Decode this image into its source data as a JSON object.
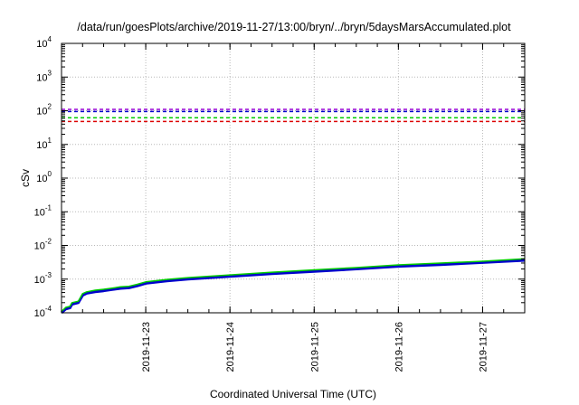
{
  "chart_data": {
    "type": "line",
    "title": "/data/run/goesPlots/archive/2019-11-27/13:00/bryn/../bryn/5daysMarsAccumulated.plot",
    "xlabel": "Coordinated Universal Time (UTC)",
    "ylabel": "cSv",
    "yscale": "log",
    "ylim": [
      0.0001,
      10000
    ],
    "xlim": [
      "2019-11-22 00:00",
      "2019-11-27 12:00"
    ],
    "grid": true,
    "y_ticks": [
      {
        "value": 0.0001,
        "base": "10",
        "exp": "-4"
      },
      {
        "value": 0.001,
        "base": "10",
        "exp": "-3"
      },
      {
        "value": 0.01,
        "base": "10",
        "exp": "-2"
      },
      {
        "value": 0.1,
        "base": "10",
        "exp": "-1"
      },
      {
        "value": 1,
        "base": "10",
        "exp": "0"
      },
      {
        "value": 10,
        "base": "10",
        "exp": "1"
      },
      {
        "value": 100,
        "base": "10",
        "exp": "2"
      },
      {
        "value": 1000,
        "base": "10",
        "exp": "3"
      },
      {
        "value": 10000,
        "base": "10",
        "exp": "4"
      }
    ],
    "x_ticks": [
      "2019-11-23",
      "2019-11-24",
      "2019-11-25",
      "2019-11-26",
      "2019-11-27"
    ],
    "reference_lines": [
      {
        "value": 110,
        "color": "#9400d3"
      },
      {
        "value": 95,
        "color": "#0000cd"
      },
      {
        "value": 62,
        "color": "#00cc00"
      },
      {
        "value": 48,
        "color": "#dd0000"
      }
    ],
    "series": [
      {
        "color": "#0000cd",
        "width": 3,
        "x": [
          "2019-11-22 00:00",
          "2019-11-22 01:12",
          "2019-11-22 02:24",
          "2019-11-22 03:00",
          "2019-11-22 04:48",
          "2019-11-22 06:00",
          "2019-11-22 07:12",
          "2019-11-22 09:36",
          "2019-11-22 12:00",
          "2019-11-22 14:24",
          "2019-11-22 16:48",
          "2019-11-22 19:12",
          "2019-11-22 21:36",
          "2019-11-23 00:00",
          "2019-11-23 06:00",
          "2019-11-23 12:00",
          "2019-11-24 00:00",
          "2019-11-24 12:00",
          "2019-11-25 00:00",
          "2019-11-25 12:00",
          "2019-11-26 00:00",
          "2019-11-26 12:00",
          "2019-11-27 00:00",
          "2019-11-27 12:00"
        ],
        "y": [
          0.0001,
          0.00013,
          0.00014,
          0.00018,
          0.0002,
          0.00033,
          0.00038,
          0.00042,
          0.00045,
          0.00049,
          0.00053,
          0.00055,
          0.00063,
          0.00075,
          0.00088,
          0.001,
          0.0012,
          0.00145,
          0.0017,
          0.002,
          0.0024,
          0.0027,
          0.0031,
          0.0036
        ]
      },
      {
        "color": "#00cc00",
        "width": 1.5,
        "x": [
          "2019-11-22 00:00",
          "2019-11-22 01:12",
          "2019-11-22 02:24",
          "2019-11-22 03:00",
          "2019-11-22 04:48",
          "2019-11-22 06:00",
          "2019-11-22 07:12",
          "2019-11-22 09:36",
          "2019-11-22 12:00",
          "2019-11-22 14:24",
          "2019-11-22 16:48",
          "2019-11-22 19:12",
          "2019-11-22 21:36",
          "2019-11-23 00:00",
          "2019-11-23 06:00",
          "2019-11-23 12:00",
          "2019-11-24 00:00",
          "2019-11-24 12:00",
          "2019-11-25 00:00",
          "2019-11-25 12:00",
          "2019-11-26 00:00",
          "2019-11-26 12:00",
          "2019-11-27 00:00",
          "2019-11-27 12:00"
        ],
        "y": [
          0.00011,
          0.000145,
          0.000155,
          0.0002,
          0.00022,
          0.00037,
          0.00042,
          0.00047,
          0.0005,
          0.00054,
          0.00059,
          0.00061,
          0.0007,
          0.00083,
          0.00098,
          0.00111,
          0.00133,
          0.0016,
          0.00188,
          0.0022,
          0.00265,
          0.003,
          0.0034,
          0.004
        ]
      }
    ]
  }
}
